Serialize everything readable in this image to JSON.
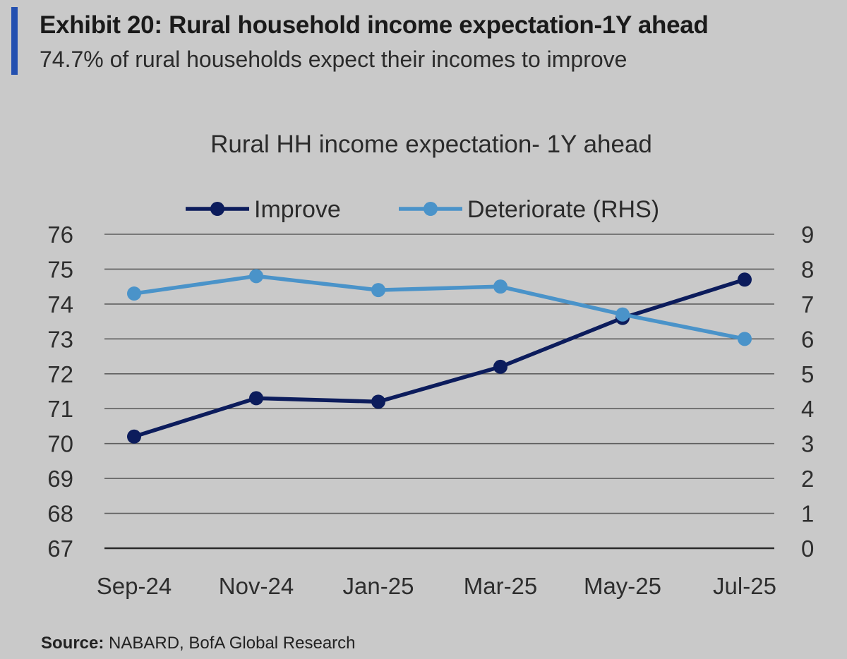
{
  "header": {
    "exhibit_title": "Exhibit 20: Rural household income expectation-1Y ahead",
    "exhibit_subtitle": "74.7% of rural households expect their incomes to improve"
  },
  "source": {
    "label": "Source:",
    "text": "NABARD, BofA Global Research"
  },
  "chart_data": {
    "type": "line",
    "title": "Rural HH income expectation- 1Y ahead",
    "categories": [
      "Sep-24",
      "Nov-24",
      "Jan-25",
      "Mar-25",
      "May-25",
      "Jul-25"
    ],
    "series": [
      {
        "name": "Improve",
        "axis": "left",
        "color": "#0c1c5c",
        "values": [
          70.2,
          71.3,
          71.2,
          72.2,
          73.6,
          74.7
        ]
      },
      {
        "name": "Deteriorate (RHS)",
        "axis": "right",
        "color": "#4a93c9",
        "values": [
          7.3,
          7.8,
          7.4,
          7.5,
          6.7,
          6.0
        ]
      }
    ],
    "y_left": {
      "min": 67,
      "max": 76,
      "ticks": [
        "67",
        "68",
        "69",
        "70",
        "71",
        "72",
        "73",
        "74",
        "75",
        "76"
      ]
    },
    "y_right": {
      "min": 0,
      "max": 9,
      "ticks": [
        "0",
        "1",
        "2",
        "3",
        "4",
        "5",
        "6",
        "7",
        "8",
        "9"
      ]
    },
    "grid": true,
    "legend_position": "top"
  }
}
